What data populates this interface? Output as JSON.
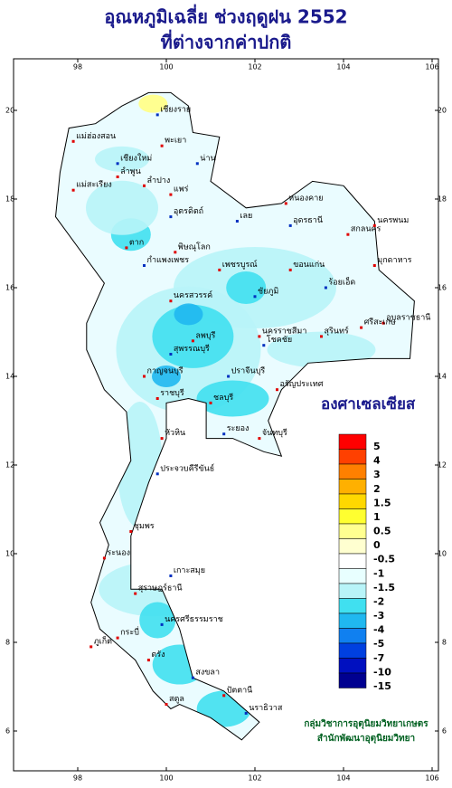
{
  "title": {
    "line1": "อุณหภูมิเฉลี่ย ช่วงฤดูฝน 2552",
    "line2": "ที่ต่างจากค่าปกติ"
  },
  "map": {
    "lon_ticks": [
      98,
      100,
      102,
      104,
      106
    ],
    "lat_ticks": [
      20,
      18,
      16,
      14,
      12,
      10,
      8,
      6
    ],
    "places": [
      "เชียงราย",
      "แม่ฮ่องสอน",
      "พะเยา",
      "เชียงใหม่",
      "ลำพูน",
      "ลำปาง",
      "น่าน",
      "แพร่",
      "แม่สะเรียง",
      "อุตรดิตถ์",
      "ตาก",
      "พิษณุโลก",
      "กำแพงเพชร",
      "เพชรบูรณ์",
      "หนองคาย",
      "อุดรธานี",
      "สกลนคร",
      "นครพนม",
      "เลย",
      "ขอนแก่น",
      "มุกดาหาร",
      "ชัยภูมิ",
      "นครสวรรค์",
      "ลพบุรี",
      "ร้อยเอ็ด",
      "อุบลราชธานี",
      "นครราชสีมา",
      "โชคชัย",
      "สุรินทร์",
      "ศรีสะเกษ",
      "สุพรรณบุรี",
      "กาญจนบุรี",
      "ราชบุรี",
      "ปราจีนบุรี",
      "อรัญประเทศ",
      "ชลบุรี",
      "ระยอง",
      "จันทบุรี",
      "หัวหิน",
      "ประจวบคีรีขันธ์",
      "ชุมพร",
      "ระนอง",
      "เกาะสมุย",
      "สุราษฎร์ธานี",
      "ภูเก็ต",
      "นครศรีธรรมราช",
      "กระบี่",
      "ตรัง",
      "สงขลา",
      "สตูล",
      "ปัตตานี",
      "นราธิวาส"
    ]
  },
  "legend": {
    "title": "องศาเซลเซียส",
    "labels": [
      5,
      4,
      3,
      2,
      1.5,
      1,
      0.5,
      0,
      -0.5,
      -1,
      -1.5,
      -2,
      -3,
      -4,
      -5,
      -7,
      -10,
      -15
    ],
    "colors": [
      "#ff0000",
      "#ff4000",
      "#ff8000",
      "#ffb000",
      "#ffd800",
      "#ffff30",
      "#ffff90",
      "#ffffd0",
      "#ffffff",
      "#e8ffff",
      "#b8f4f8",
      "#40e0f0",
      "#20b8f0",
      "#1080f0",
      "#0040e0",
      "#0010c0",
      "#000090"
    ]
  },
  "credit": {
    "line1": "กลุ่มวิชาการอุตุนิยมวิทยาเกษตร",
    "line2": "สำนักพัฒนาอุตุนิยมวิทยา"
  }
}
